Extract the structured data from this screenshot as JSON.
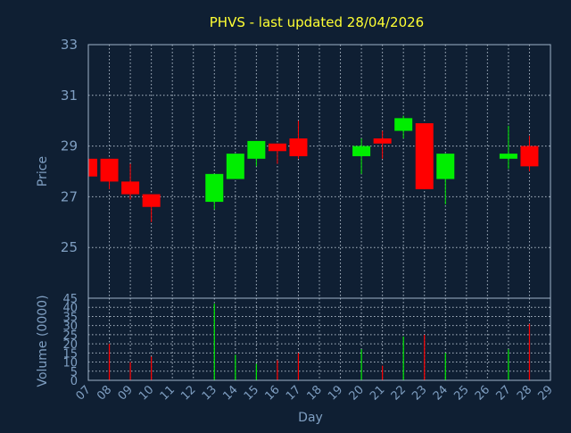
{
  "chart_data": {
    "type": "candlestick",
    "title": "PHVS - last updated 28/04/2026",
    "xlabel": "Day",
    "x_ticks": [
      "07",
      "08",
      "09",
      "10",
      "11",
      "12",
      "13",
      "14",
      "15",
      "16",
      "17",
      "18",
      "19",
      "20",
      "21",
      "22",
      "23",
      "24",
      "25",
      "26",
      "27",
      "28",
      "29"
    ],
    "price": {
      "ylabel": "Price",
      "ylim": [
        23,
        33
      ],
      "yticks": [
        25,
        27,
        29,
        31,
        33
      ],
      "candles": [
        {
          "day": 7,
          "open": 28.5,
          "high": 28.5,
          "low": 27.8,
          "close": 27.8
        },
        {
          "day": 8,
          "open": 28.5,
          "high": 28.5,
          "low": 27.3,
          "close": 27.6
        },
        {
          "day": 9,
          "open": 27.6,
          "high": 28.3,
          "low": 26.9,
          "close": 27.1
        },
        {
          "day": 10,
          "open": 27.1,
          "high": 27.1,
          "low": 26.0,
          "close": 26.6
        },
        {
          "day": 13,
          "open": 26.8,
          "high": 27.9,
          "low": 26.5,
          "close": 27.9
        },
        {
          "day": 14,
          "open": 27.7,
          "high": 28.7,
          "low": 27.7,
          "close": 28.7
        },
        {
          "day": 15,
          "open": 28.5,
          "high": 29.2,
          "low": 28.2,
          "close": 29.2
        },
        {
          "day": 16,
          "open": 29.1,
          "high": 29.1,
          "low": 28.3,
          "close": 28.8
        },
        {
          "day": 17,
          "open": 29.3,
          "high": 30.0,
          "low": 28.5,
          "close": 28.6
        },
        {
          "day": 20,
          "open": 28.6,
          "high": 29.3,
          "low": 27.9,
          "close": 29.0
        },
        {
          "day": 21,
          "open": 29.3,
          "high": 29.6,
          "low": 28.5,
          "close": 29.1
        },
        {
          "day": 22,
          "open": 29.6,
          "high": 30.2,
          "low": 29.3,
          "close": 30.1
        },
        {
          "day": 23,
          "open": 29.9,
          "high": 29.9,
          "low": 27.3,
          "close": 27.3
        },
        {
          "day": 24,
          "open": 27.7,
          "high": 28.7,
          "low": 26.7,
          "close": 28.7
        },
        {
          "day": 27,
          "open": 28.5,
          "high": 29.8,
          "low": 28.1,
          "close": 28.7
        },
        {
          "day": 28,
          "open": 29.0,
          "high": 29.4,
          "low": 28.0,
          "close": 28.2
        }
      ]
    },
    "volume": {
      "ylabel": "Volume (0000)",
      "ylim": [
        0,
        45
      ],
      "yticks": [
        0,
        5,
        10,
        15,
        20,
        25,
        30,
        35,
        40,
        45
      ],
      "bars": [
        {
          "day": 8,
          "value": 20
        },
        {
          "day": 9,
          "value": 10
        },
        {
          "day": 10,
          "value": 13
        },
        {
          "day": 13,
          "value": 42
        },
        {
          "day": 14,
          "value": 14
        },
        {
          "day": 15,
          "value": 9
        },
        {
          "day": 16,
          "value": 11
        },
        {
          "day": 17,
          "value": 15
        },
        {
          "day": 20,
          "value": 17
        },
        {
          "day": 21,
          "value": 8
        },
        {
          "day": 22,
          "value": 24
        },
        {
          "day": 23,
          "value": 25
        },
        {
          "day": 24,
          "value": 15
        },
        {
          "day": 27,
          "value": 17
        },
        {
          "day": 28,
          "value": 31
        }
      ]
    },
    "colors": {
      "up": "#00ee00",
      "down": "#ff0000",
      "background": "#0f1f33",
      "title": "#ffff33",
      "text": "#7f9fc2"
    },
    "grid": true
  }
}
